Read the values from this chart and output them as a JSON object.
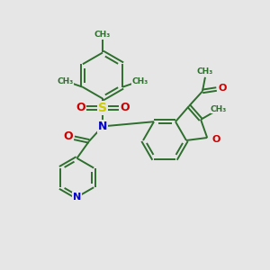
{
  "background_color": "#e6e6e6",
  "bond_color": "#2d6e2d",
  "N_color": "#0000cc",
  "O_color": "#cc0000",
  "S_color": "#cccc00",
  "bond_width": 1.4,
  "figsize": [
    3.0,
    3.0
  ],
  "dpi": 100,
  "xlim": [
    0,
    10
  ],
  "ylim": [
    0,
    10
  ]
}
